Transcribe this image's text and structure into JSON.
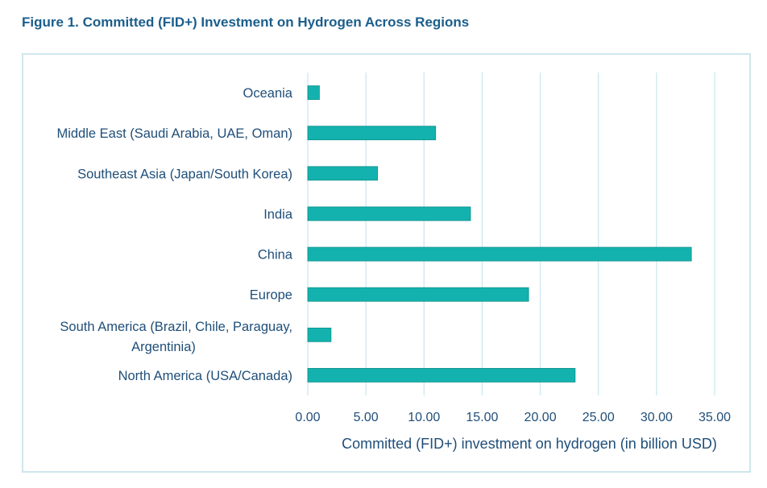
{
  "figure_title": "Figure 1. Committed (FID+) Investment on Hydrogen Across Regions",
  "colors": {
    "bar": "#14b2ae",
    "bar_stroke": "#0d8f8b",
    "grid": "#cde7f2",
    "text": "#1f4e79",
    "title": "#1b5e8c"
  },
  "chart_data": {
    "type": "bar",
    "orientation": "horizontal",
    "title": "Figure 1. Committed (FID+) Investment on Hydrogen Across Regions",
    "xlabel": "Committed (FID+) investment on hydrogen (in billion USD)",
    "ylabel": "",
    "xlim": [
      0,
      35
    ],
    "xticks": [
      "0.00",
      "5.00",
      "10.00",
      "15.00",
      "20.00",
      "25.00",
      "30.00",
      "35.00"
    ],
    "grid": true,
    "categories": [
      "Oceania",
      "Middle East (Saudi Arabia, UAE, Oman)",
      "Southeast Asia (Japan/South Korea)",
      "India",
      "China",
      "Europe",
      "South America (Brazil, Chile, Paraguay, Argentinia)",
      "North America (USA/Canada)"
    ],
    "values": [
      1,
      11,
      6,
      14,
      33,
      19,
      2,
      23
    ]
  }
}
